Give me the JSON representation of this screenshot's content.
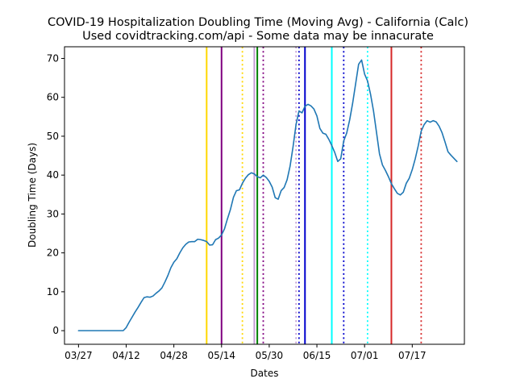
{
  "chart_data": {
    "type": "line",
    "title": "COVID-19 Hospitalization Doubling Time (Moving Avg) - California (Calc)",
    "subtitle": "Used covidtracking.com/api - Some data may be innacurate",
    "xlabel": "Dates",
    "ylabel": "Doubling Time (Days)",
    "x_start": "03/27",
    "x_tick_labels": [
      "03/27",
      "04/12",
      "04/28",
      "05/14",
      "05/30",
      "06/15",
      "07/01",
      "07/17"
    ],
    "y_ticks": [
      0,
      10,
      20,
      30,
      40,
      50,
      60,
      70
    ],
    "ylim": [
      -3.5,
      73
    ],
    "grid": false,
    "series": [
      {
        "color": "#1f77b4",
        "points": [
          [
            "03/27",
            0
          ],
          [
            "03/30",
            0
          ],
          [
            "04/02",
            0
          ],
          [
            "04/05",
            0
          ],
          [
            "04/08",
            0
          ],
          [
            "04/11",
            0
          ],
          [
            "04/12",
            0.8
          ],
          [
            "04/13",
            2.2
          ],
          [
            "04/14",
            3.5
          ],
          [
            "04/15",
            4.8
          ],
          [
            "04/16",
            6.0
          ],
          [
            "04/17",
            7.3
          ],
          [
            "04/18",
            8.5
          ],
          [
            "04/19",
            8.7
          ],
          [
            "04/20",
            8.6
          ],
          [
            "04/21",
            8.9
          ],
          [
            "04/22",
            9.6
          ],
          [
            "04/23",
            10.2
          ],
          [
            "04/24",
            11.0
          ],
          [
            "04/25",
            12.5
          ],
          [
            "04/26",
            14.2
          ],
          [
            "04/27",
            16.2
          ],
          [
            "04/28",
            17.6
          ],
          [
            "04/29",
            18.5
          ],
          [
            "04/30",
            20.0
          ],
          [
            "05/01",
            21.3
          ],
          [
            "05/02",
            22.2
          ],
          [
            "05/03",
            22.8
          ],
          [
            "05/04",
            22.9
          ],
          [
            "05/05",
            22.9
          ],
          [
            "05/06",
            23.5
          ],
          [
            "05/07",
            23.4
          ],
          [
            "05/08",
            23.2
          ],
          [
            "05/09",
            22.9
          ],
          [
            "05/10",
            22.0
          ],
          [
            "05/11",
            22.1
          ],
          [
            "05/12",
            23.4
          ],
          [
            "05/13",
            23.8
          ],
          [
            "05/14",
            24.6
          ],
          [
            "05/15",
            26.2
          ],
          [
            "05/16",
            28.8
          ],
          [
            "05/17",
            31.2
          ],
          [
            "05/18",
            34.3
          ],
          [
            "05/19",
            36.0
          ],
          [
            "05/20",
            36.2
          ],
          [
            "05/21",
            37.9
          ],
          [
            "05/22",
            39.2
          ],
          [
            "05/23",
            40.1
          ],
          [
            "05/24",
            40.6
          ],
          [
            "05/25",
            40.3
          ],
          [
            "05/26",
            39.6
          ],
          [
            "05/27",
            39.3
          ],
          [
            "05/28",
            40.0
          ],
          [
            "05/29",
            39.4
          ],
          [
            "05/30",
            38.4
          ],
          [
            "05/31",
            36.9
          ],
          [
            "06/01",
            34.2
          ],
          [
            "06/02",
            33.8
          ],
          [
            "06/03",
            36.0
          ],
          [
            "06/04",
            36.8
          ],
          [
            "06/05",
            38.8
          ],
          [
            "06/06",
            42.3
          ],
          [
            "06/07",
            47.3
          ],
          [
            "06/08",
            53.0
          ],
          [
            "06/09",
            56.5
          ],
          [
            "06/10",
            56.0
          ],
          [
            "06/11",
            57.7
          ],
          [
            "06/12",
            58.2
          ],
          [
            "06/13",
            57.8
          ],
          [
            "06/14",
            57.0
          ],
          [
            "06/15",
            55.2
          ],
          [
            "06/16",
            52.0
          ],
          [
            "06/17",
            50.8
          ],
          [
            "06/18",
            50.5
          ],
          [
            "06/19",
            49.2
          ],
          [
            "06/20",
            47.6
          ],
          [
            "06/21",
            45.8
          ],
          [
            "06/22",
            43.5
          ],
          [
            "06/23",
            44.2
          ],
          [
            "06/24",
            48.8
          ],
          [
            "06/25",
            50.8
          ],
          [
            "06/26",
            54.2
          ],
          [
            "06/27",
            58.5
          ],
          [
            "06/28",
            63.5
          ],
          [
            "06/29",
            68.5
          ],
          [
            "06/30",
            69.6
          ],
          [
            "07/01",
            66.0
          ],
          [
            "07/02",
            64.2
          ],
          [
            "07/03",
            60.8
          ],
          [
            "07/04",
            56.5
          ],
          [
            "07/05",
            51.0
          ],
          [
            "07/06",
            45.5
          ],
          [
            "07/07",
            42.6
          ],
          [
            "07/08",
            41.2
          ],
          [
            "07/09",
            39.6
          ],
          [
            "07/10",
            37.8
          ],
          [
            "07/11",
            36.5
          ],
          [
            "07/12",
            35.3
          ],
          [
            "07/13",
            34.9
          ],
          [
            "07/14",
            35.6
          ],
          [
            "07/15",
            37.9
          ],
          [
            "07/16",
            39.2
          ],
          [
            "07/17",
            41.4
          ],
          [
            "07/18",
            44.2
          ],
          [
            "07/19",
            47.5
          ],
          [
            "07/20",
            51.3
          ],
          [
            "07/21",
            53.0
          ],
          [
            "07/22",
            54.0
          ],
          [
            "07/23",
            53.6
          ],
          [
            "07/24",
            54.0
          ],
          [
            "07/25",
            53.7
          ],
          [
            "07/26",
            52.6
          ],
          [
            "07/27",
            50.9
          ],
          [
            "07/28",
            48.5
          ],
          [
            "07/29",
            46.0
          ],
          [
            "07/30",
            45.1
          ],
          [
            "07/31",
            44.3
          ],
          [
            "08/01",
            43.5
          ]
        ]
      }
    ],
    "vlines": [
      {
        "date": "05/09",
        "color": "#ffd700",
        "style": "solid"
      },
      {
        "date": "05/14",
        "color": "#800080",
        "style": "solid"
      },
      {
        "date": "05/21",
        "color": "#ffd700",
        "style": "dotted"
      },
      {
        "date": "05/25",
        "color": "#c39bd3",
        "style": "solid"
      },
      {
        "date": "05/26",
        "color": "#008000",
        "style": "solid"
      },
      {
        "date": "05/28",
        "color": "#800080",
        "style": "dotted"
      },
      {
        "date": "06/08",
        "color": "#c39bd3",
        "style": "dotted"
      },
      {
        "date": "06/09",
        "color": "#0000cd",
        "style": "dotted"
      },
      {
        "date": "06/11",
        "color": "#0000cd",
        "style": "solid"
      },
      {
        "date": "06/20",
        "color": "#00ffff",
        "style": "solid"
      },
      {
        "date": "06/24",
        "color": "#0000cd",
        "style": "dotted"
      },
      {
        "date": "07/02",
        "color": "#00ffff",
        "style": "dotted"
      },
      {
        "date": "07/10",
        "color": "#d62728",
        "style": "solid"
      },
      {
        "date": "07/20",
        "color": "#d62728",
        "style": "dotted"
      }
    ]
  }
}
